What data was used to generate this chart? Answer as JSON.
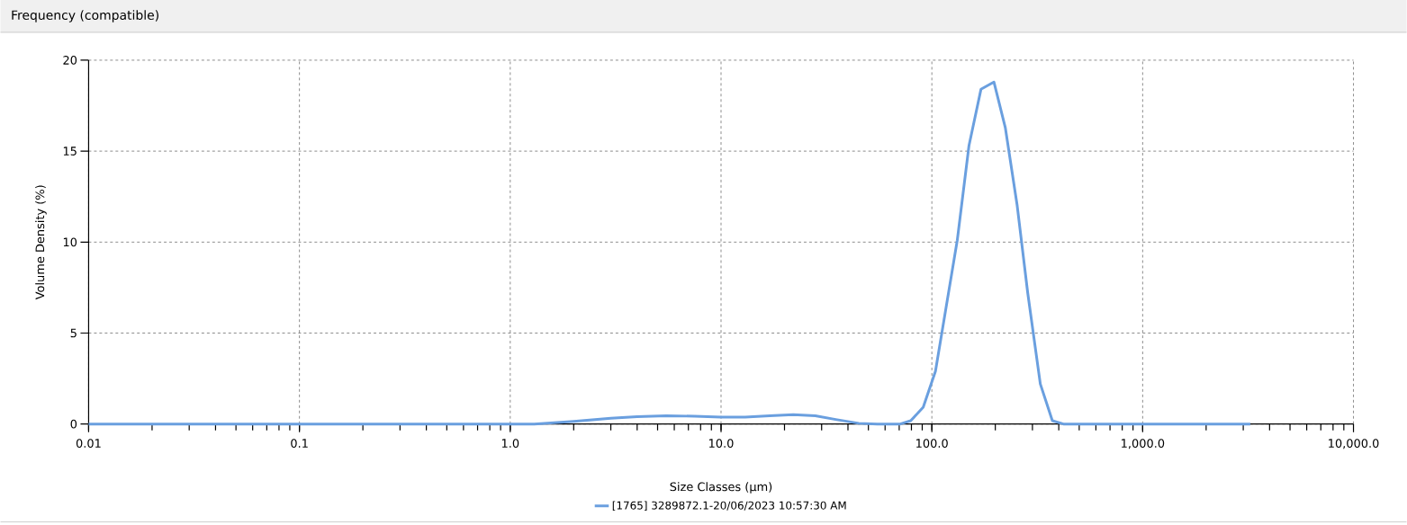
{
  "chart_data": {
    "type": "line",
    "title": "Frequency (compatible)",
    "xlabel": "Size Classes (µm)",
    "ylabel": "Volume Density (%)",
    "log": "x",
    "grid": true,
    "legend": "bottom",
    "marker": "none",
    "line_style": "solid",
    "x": [
      0.01,
      1.3,
      2,
      3,
      4,
      5.5,
      7.5,
      10,
      13,
      17,
      22,
      28,
      35,
      45,
      55,
      70.8,
      79.4,
      91,
      104,
      116,
      132,
      150,
      171,
      197,
      223,
      254,
      285,
      327,
      373,
      421,
      3240
    ],
    "series": [
      {
        "name": "[1765] 3289872.1-20/06/2023 10:57:30 AM",
        "color": "#6a9fdf",
        "values": [
          0,
          0,
          0.15,
          0.32,
          0.4,
          0.45,
          0.43,
          0.38,
          0.38,
          0.45,
          0.52,
          0.45,
          0.25,
          0.04,
          0,
          0,
          0.18,
          0.92,
          2.9,
          6.2,
          10.1,
          15.3,
          18.4,
          18.8,
          16.3,
          12,
          7.2,
          2.2,
          0.18,
          0,
          0
        ]
      }
    ],
    "xlim": [
      0.01,
      10000
    ],
    "ylim": [
      0,
      20
    ],
    "xticks": [
      {
        "value": 0.01,
        "label": "0.01"
      },
      {
        "value": 0.1,
        "label": "0.1"
      },
      {
        "value": 1,
        "label": "1.0"
      },
      {
        "value": 10,
        "label": "10.0"
      },
      {
        "value": 100,
        "label": "100.0"
      },
      {
        "value": 1000,
        "label": "1,000.0"
      },
      {
        "value": 10000,
        "label": "10,000.0"
      }
    ],
    "yticks": [
      0,
      5,
      10,
      15,
      20
    ]
  }
}
